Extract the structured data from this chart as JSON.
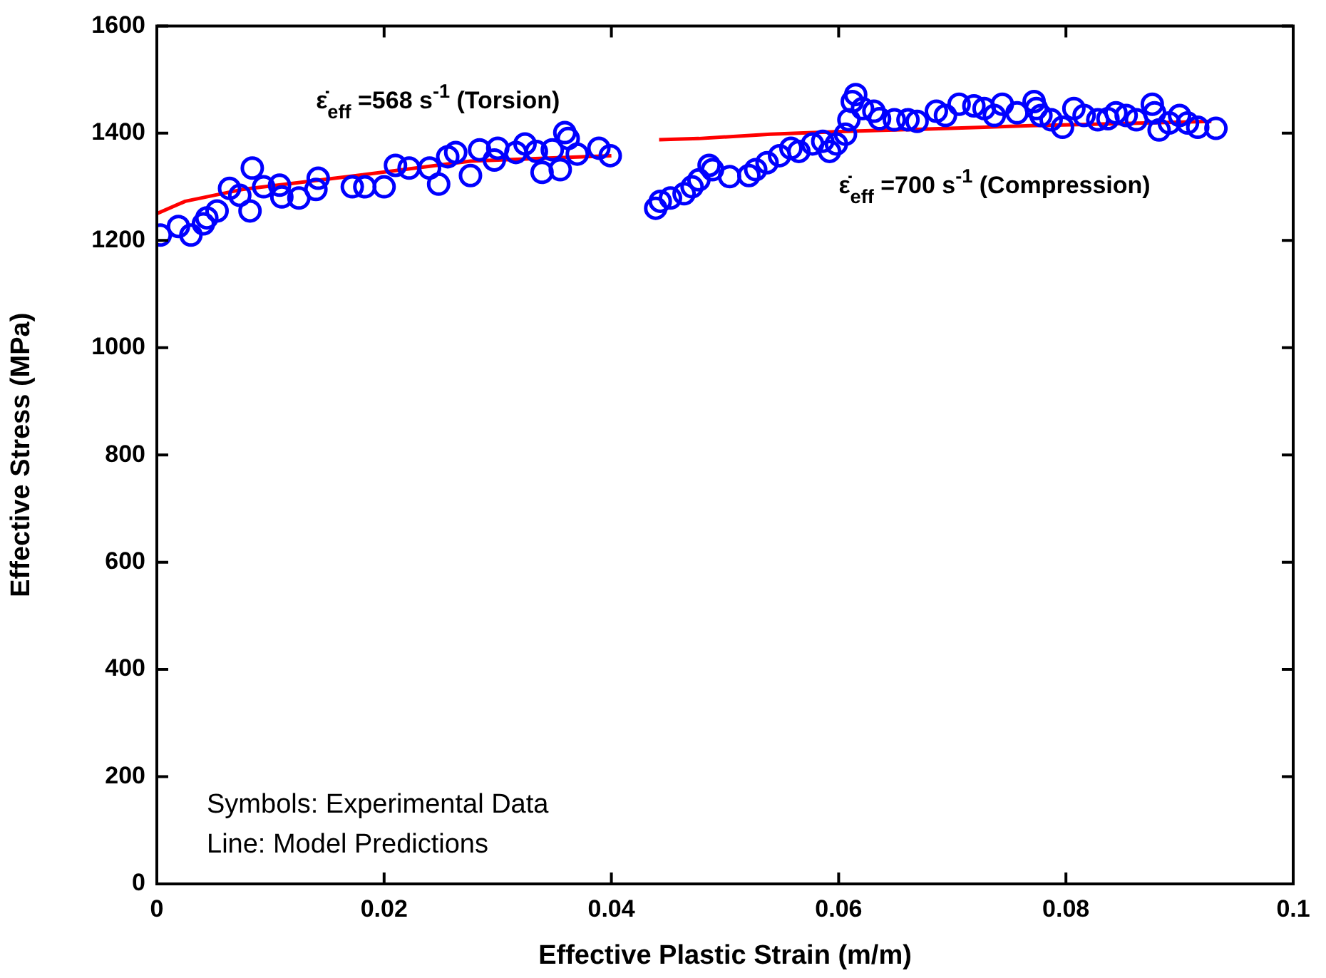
{
  "chart_data": {
    "type": "scatter",
    "xlabel": "Effective Plastic Strain (m/m)",
    "ylabel": "Effective Stress (MPa)",
    "xlim": [
      0,
      0.1
    ],
    "xticks": [
      0,
      0.02,
      0.04,
      0.06,
      0.08,
      0.1
    ],
    "ylim": [
      0,
      1600
    ],
    "yticks": [
      0,
      200,
      400,
      600,
      800,
      1000,
      1200,
      1400,
      1600
    ],
    "grid": false,
    "legend": false,
    "marker": "circle",
    "series": [
      {
        "color": "#0000ff",
        "x": [
          0.0003,
          0.0019,
          0.003,
          0.0041,
          0.0044,
          0.0053,
          0.0064,
          0.0073,
          0.0082,
          0.0084,
          0.0094,
          0.0108,
          0.011,
          0.0125,
          0.014,
          0.0142,
          0.0172,
          0.0183,
          0.02,
          0.021,
          0.0222,
          0.024,
          0.0248,
          0.0256,
          0.0263,
          0.0276,
          0.0284,
          0.0297,
          0.03,
          0.0316,
          0.0324,
          0.0334,
          0.0339,
          0.0348,
          0.0355,
          0.0359,
          0.0362,
          0.037,
          0.0389,
          0.0399
        ],
        "values": [
          1210,
          1226,
          1210,
          1231,
          1242,
          1255,
          1297,
          1284,
          1255,
          1335,
          1300,
          1303,
          1281,
          1279,
          1295,
          1316,
          1300,
          1300,
          1300,
          1340,
          1335,
          1335,
          1305,
          1356,
          1364,
          1321,
          1369,
          1350,
          1372,
          1364,
          1380,
          1366,
          1327,
          1369,
          1332,
          1401,
          1390,
          1361,
          1372,
          1358
        ]
      },
      {
        "color": "#0000ff",
        "x": [
          0.0439,
          0.0443,
          0.0452,
          0.0464,
          0.0471,
          0.0477,
          0.0486,
          0.0489,
          0.0504,
          0.0521,
          0.0527,
          0.0537,
          0.0548,
          0.0558,
          0.0565,
          0.0577,
          0.0586,
          0.0592,
          0.0598,
          0.0606,
          0.0609,
          0.0612,
          0.0615,
          0.0621,
          0.0631,
          0.0636,
          0.0649,
          0.0661,
          0.0669,
          0.0686,
          0.0694,
          0.0706,
          0.0719,
          0.0728,
          0.0737,
          0.0744,
          0.0757,
          0.0772,
          0.0774,
          0.0778,
          0.0787,
          0.0797,
          0.0807,
          0.0816,
          0.0828,
          0.0837,
          0.0844,
          0.0853,
          0.0862,
          0.0876,
          0.0878,
          0.0882,
          0.0891,
          0.09,
          0.0907,
          0.0916,
          0.0932
        ],
        "values": [
          1260,
          1273,
          1279,
          1287,
          1300,
          1313,
          1340,
          1332,
          1319,
          1321,
          1332,
          1345,
          1358,
          1372,
          1366,
          1380,
          1385,
          1366,
          1380,
          1398,
          1425,
          1459,
          1472,
          1446,
          1441,
          1427,
          1425,
          1425,
          1422,
          1441,
          1433,
          1454,
          1451,
          1446,
          1433,
          1454,
          1438,
          1459,
          1446,
          1433,
          1425,
          1411,
          1446,
          1433,
          1425,
          1427,
          1438,
          1433,
          1425,
          1454,
          1438,
          1406,
          1419,
          1433,
          1419,
          1411,
          1409
        ]
      },
      {
        "type": "line",
        "color": "#ff0000",
        "marker": "none",
        "x": [
          0,
          0.0025,
          0.0075,
          0.0176,
          0.0276,
          0.04
        ],
        "values": [
          1250,
          1273,
          1295,
          1321,
          1348,
          1358
        ]
      },
      {
        "type": "line",
        "color": "#ff0000",
        "marker": "none",
        "x": [
          0.0442,
          0.0477,
          0.054,
          0.0602,
          0.0728,
          0.0769,
          0.0928
        ],
        "values": [
          1388,
          1390,
          1398,
          1403,
          1411,
          1414,
          1422
        ]
      }
    ],
    "annotations": [
      "ε̇$_{eff}$ =568 s$^{-1}$ (Torsion)",
      "ε̇$_{eff}$ =700 s$^{-1}$ (Compression)",
      "Symbols: Experimental Data",
      "Line: Model Predictions"
    ]
  }
}
